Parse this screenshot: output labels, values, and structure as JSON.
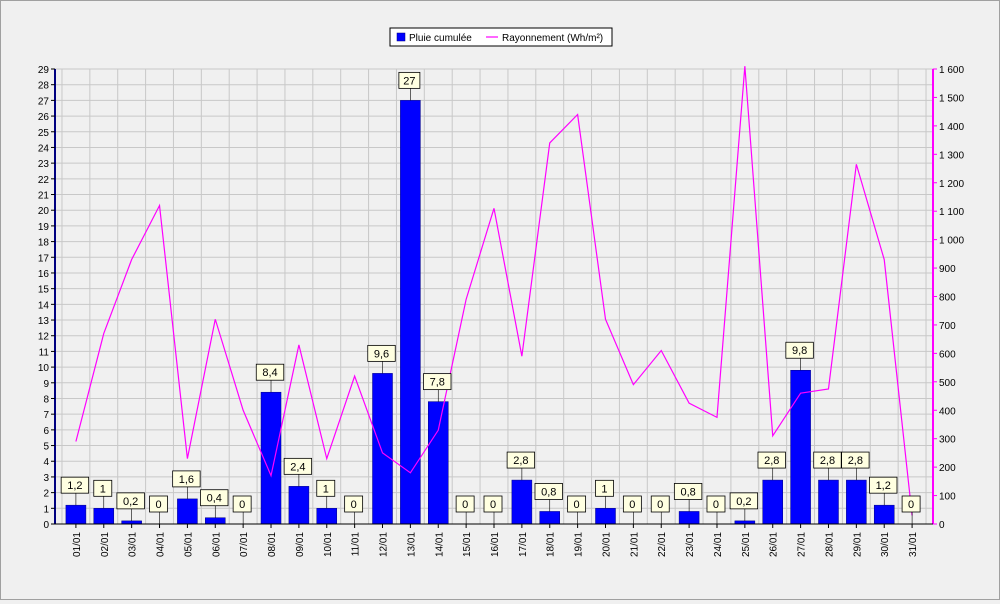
{
  "chart_data": {
    "type": "bar",
    "categories": [
      "01/01",
      "02/01",
      "03/01",
      "04/01",
      "05/01",
      "06/01",
      "07/01",
      "08/01",
      "09/01",
      "10/01",
      "11/01",
      "12/01",
      "13/01",
      "14/01",
      "15/01",
      "16/01",
      "17/01",
      "18/01",
      "19/01",
      "20/01",
      "21/01",
      "22/01",
      "23/01",
      "24/01",
      "25/01",
      "26/01",
      "27/01",
      "28/01",
      "29/01",
      "30/01",
      "31/01"
    ],
    "series": [
      {
        "name": "Pluie cumulée",
        "type": "bar",
        "axis": "left",
        "color": "#0000ff",
        "values": [
          1.2,
          1,
          0.2,
          0,
          1.6,
          0.4,
          0,
          8.4,
          2.4,
          1,
          0,
          9.6,
          27,
          7.8,
          0,
          0,
          2.8,
          0.8,
          0,
          1,
          0,
          0,
          0.8,
          0,
          0.2,
          2.8,
          9.8,
          2.8,
          2.8,
          1.2,
          0
        ],
        "data_labels": [
          "1,2",
          "1",
          "0,2",
          "0",
          "1,6",
          "0,4",
          "0",
          "8,4",
          "2,4",
          "1",
          "0",
          "9,6",
          "27",
          "7,8",
          "0",
          "0",
          "2,8",
          "0,8",
          "0",
          "1",
          "0",
          "0",
          "0,8",
          "0",
          "0,2",
          "2,8",
          "9,8",
          "2,8",
          "2,8",
          "1,2",
          "0"
        ]
      },
      {
        "name": "Rayonnement (Wh/m²)",
        "type": "line",
        "axis": "right",
        "color": "#ff00ff",
        "values": [
          290,
          670,
          930,
          1120,
          230,
          720,
          400,
          170,
          630,
          230,
          520,
          250,
          180,
          330,
          790,
          1110,
          590,
          1340,
          1440,
          720,
          490,
          610,
          425,
          375,
          1610,
          310,
          460,
          475,
          1265,
          930,
          30
        ]
      }
    ],
    "left_axis": {
      "ylim": [
        0,
        29
      ],
      "ticks": [
        "0",
        "1",
        "2",
        "3",
        "4",
        "5",
        "6",
        "7",
        "8",
        "9",
        "10",
        "11",
        "12",
        "13",
        "14",
        "15",
        "16",
        "17",
        "18",
        "19",
        "20",
        "21",
        "22",
        "23",
        "24",
        "25",
        "26",
        "27",
        "28",
        "29"
      ]
    },
    "right_axis": {
      "ylim": [
        0,
        1600
      ],
      "ticks": [
        "0",
        "100",
        "200",
        "300",
        "400",
        "500",
        "600",
        "700",
        "800",
        "900",
        "1 000",
        "1 100",
        "1 200",
        "1 300",
        "1 400",
        "1 500",
        "1 600"
      ]
    },
    "legend_position": "top-center",
    "grid": true,
    "colors": {
      "grid": "#c8c8c8",
      "bar": "#0000ff",
      "line": "#ff00ff",
      "label_bg": "#ffffe1",
      "left_axis": "#000080",
      "right_axis": "#ff00ff"
    }
  }
}
